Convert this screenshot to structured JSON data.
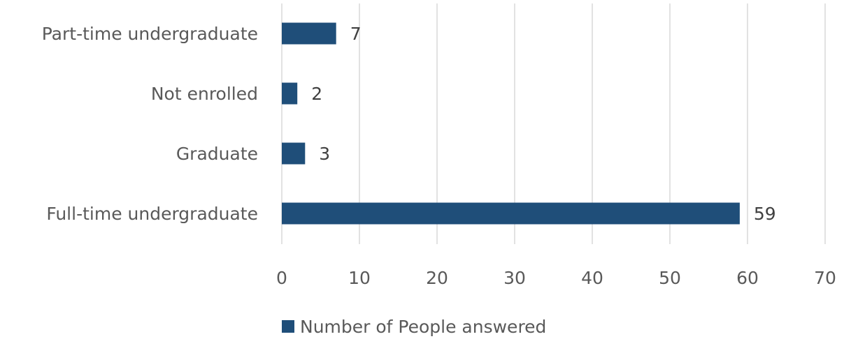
{
  "chart_data": {
    "type": "bar",
    "orientation": "horizontal",
    "categories": [
      "Part-time undergraduate",
      "Not enrolled",
      "Graduate",
      "Full-time undergraduate"
    ],
    "series": [
      {
        "name": "Number of People answered",
        "values": [
          7,
          2,
          3,
          59
        ],
        "color": "#1f4e79"
      }
    ],
    "xlim": [
      0,
      70
    ],
    "x_ticks": [
      0,
      10,
      20,
      30,
      40,
      50,
      60,
      70
    ],
    "xlabel": "",
    "ylabel": "",
    "title": "",
    "grid": true,
    "data_labels": true,
    "legend_position": "bottom"
  }
}
